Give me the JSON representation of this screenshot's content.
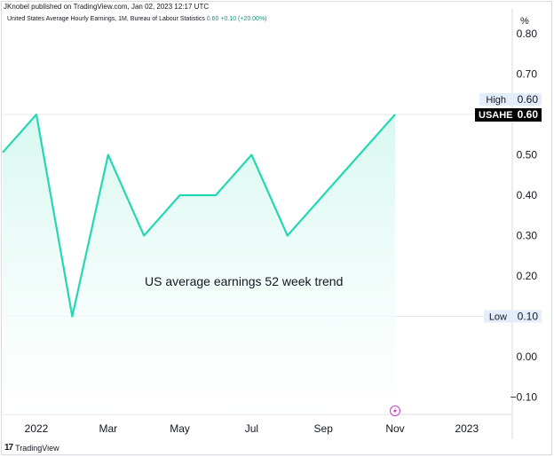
{
  "header": {
    "published_by": "JKnobel published on TradingView.com, Jan 02, 2023 12:17 UTC"
  },
  "legend": {
    "series_text": "United States Average Hourly Earnings, 1M, Bureau of Labour Statistics",
    "values_text": "0.60  +0.10 (+20.00%)"
  },
  "footer": {
    "brand": "TradingView",
    "logo_glyph": "17"
  },
  "colors": {
    "line": "#26d7b4",
    "fill_top": "#d8f8f0",
    "fill_bottom": "#ffffff",
    "grid": "#e6e8ea",
    "label_bg": "#e3eefa",
    "price_bg": "#000000",
    "lightning": "#c83ccc"
  },
  "chart_data": {
    "type": "area",
    "annotation": "US average earnings 52 week trend",
    "x": [
      "2021-12",
      "2022-01",
      "2022-02",
      "2022-03",
      "2022-04",
      "2022-05",
      "2022-06",
      "2022-07",
      "2022-08",
      "2022-09",
      "2022-10",
      "2022-11"
    ],
    "series": [
      {
        "name": "USAHE",
        "values": [
          0.5,
          0.6,
          0.1,
          0.5,
          0.3,
          0.4,
          0.4,
          0.5,
          0.3,
          0.4,
          0.5,
          0.6
        ]
      }
    ],
    "x_tick_labels": [
      {
        "x": "2022-01",
        "label": "2022"
      },
      {
        "x": "2022-03",
        "label": "Mar"
      },
      {
        "x": "2022-05",
        "label": "May"
      },
      {
        "x": "2022-07",
        "label": "Jul"
      },
      {
        "x": "2022-09",
        "label": "Sep"
      },
      {
        "x": "2022-11",
        "label": "Nov"
      },
      {
        "x": "2023-01",
        "label": "2023"
      }
    ],
    "y_unit_label": "%",
    "y_ticks": [
      0.8,
      0.7,
      0.5,
      0.4,
      0.3,
      0.2,
      0.0,
      -0.1
    ],
    "y_tick_labels": [
      "0.80",
      "0.70",
      "0.50",
      "0.40",
      "0.30",
      "0.20",
      "0.00",
      "−0.10"
    ],
    "ylim": [
      -0.15,
      0.85
    ],
    "high": {
      "label": "High",
      "value": 0.6,
      "value_label": "0.60"
    },
    "low": {
      "label": "Low",
      "value": 0.1,
      "value_label": "0.10"
    },
    "last_price": {
      "symbol": "USAHE",
      "value": 0.6,
      "value_label": "0.60"
    },
    "grid": false,
    "scale_position": "right"
  }
}
